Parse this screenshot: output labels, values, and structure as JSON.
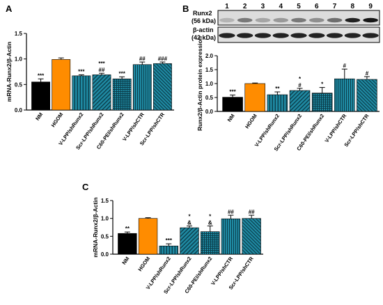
{
  "figure": {
    "panels": [
      "A",
      "B",
      "C"
    ]
  },
  "blot": {
    "lanes": [
      "1",
      "2",
      "3",
      "4",
      "5",
      "6",
      "7",
      "8",
      "9"
    ],
    "labels": [
      "Runx2",
      "(56 kDa)",
      "β-actin",
      "(42 kDa)"
    ]
  },
  "chart_data": [
    {
      "panel": "A",
      "type": "bar",
      "ylabel": "mRNA-Runx2/β-Actin",
      "ylim": [
        0.0,
        1.5
      ],
      "yticks": [
        "0.0",
        "0.5",
        "1.0",
        "1.5"
      ],
      "categories": [
        "NM",
        "HGOM",
        "V-LPP/shRunx2",
        "Scr-LPP/shRunx2",
        "C60-PEI/shRunx2",
        "V-LPP/shCTR",
        "Scr-LPP/shCTR"
      ],
      "values": [
        0.55,
        0.99,
        0.67,
        0.69,
        0.61,
        0.89,
        0.91
      ],
      "errors": [
        0.06,
        0.03,
        0.02,
        0.03,
        0.04,
        0.05,
        0.03
      ],
      "annotations": [
        "***",
        "",
        "***",
        "***\n##",
        "***",
        "##",
        "###"
      ]
    },
    {
      "panel": "B",
      "type": "bar",
      "ylabel": "Runx2/β-Actin protein expression",
      "ylim": [
        0.0,
        2.0
      ],
      "yticks": [
        "0.0",
        "0.5",
        "1.0",
        "1.5",
        "2.0"
      ],
      "categories": [
        "NM",
        "HGOM",
        "V-LPP/shRunx2",
        "Scr-LPP/shRunx2",
        "C60-PEI/shRunx2",
        "V-LPP/shCTR",
        "Scr-LPP/shCTR"
      ],
      "values": [
        0.51,
        1.0,
        0.6,
        0.75,
        0.66,
        1.17,
        1.15
      ],
      "errors": [
        0.08,
        0.02,
        0.1,
        0.08,
        0.2,
        0.35,
        0.1
      ],
      "annotations": [
        "***",
        "",
        "**",
        "*\n#",
        "*",
        "#",
        "#"
      ]
    },
    {
      "panel": "C",
      "type": "bar",
      "ylabel": "mRNA-Runx2/β-Actin",
      "ylim": [
        0.0,
        1.5
      ],
      "yticks": [
        "0.0",
        "0.5",
        "1.0",
        "1.5"
      ],
      "categories": [
        "NM",
        "HGOM",
        "V-LPP/shRunx2",
        "Scr-LPP/shRunx2",
        "C60-PEI/shRunx2",
        "V-LPP/shCTR",
        "Scr-LPP/shCTR"
      ],
      "values": [
        0.58,
        1.0,
        0.23,
        0.74,
        0.63,
        0.99,
        1.0
      ],
      "errors": [
        0.04,
        0.02,
        0.06,
        0.05,
        0.16,
        0.1,
        0.09
      ],
      "annotations": [
        "**",
        "",
        "***",
        "*\n&",
        "*\n&",
        "##",
        "##"
      ]
    }
  ],
  "colors": {
    "NM": "#000000",
    "HGOM": "#ff8c00",
    "V-LPP/shRunx2": "#1f8aa3",
    "Scr-LPP/shRunx2": "#1f8aa3",
    "C60-PEI/shRunx2": "#1f8aa3",
    "V-LPP/shCTR": "#1f8aa3",
    "Scr-LPP/shCTR": "#1f8aa3"
  }
}
